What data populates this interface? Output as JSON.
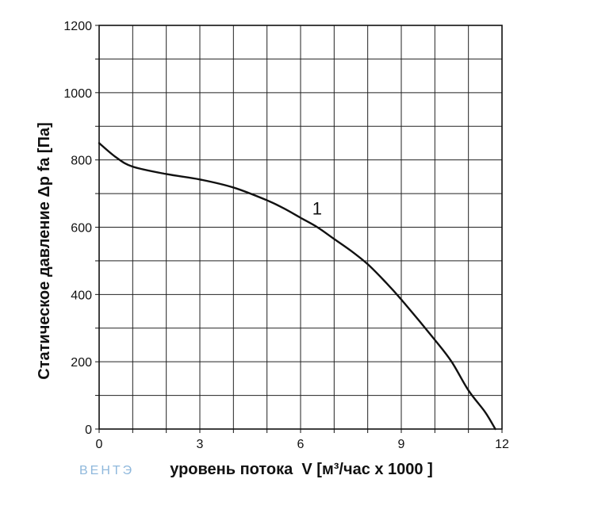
{
  "watermark": "ВЕНТЭ",
  "chart_data": {
    "type": "line",
    "xlabel": "уровень потока  V [м³/час x 1000 ]",
    "ylabel": "Статическое давление  Δp fa [Па]",
    "xlim": [
      0,
      12
    ],
    "ylim": [
      0,
      1200
    ],
    "x_ticks": [
      "0",
      "3",
      "6",
      "9",
      "12"
    ],
    "y_ticks": [
      "0",
      "200",
      "400",
      "600",
      "800",
      "1000",
      "1200"
    ],
    "grid": true,
    "series": [
      {
        "name": "1",
        "x": [
          0,
          0.5,
          1,
          2,
          3,
          4,
          5,
          5.5,
          6,
          6.5,
          7,
          7.5,
          8,
          8.5,
          9,
          10,
          10.5,
          11,
          11.5,
          11.8
        ],
        "y": [
          850,
          808,
          780,
          758,
          742,
          718,
          680,
          656,
          628,
          600,
          565,
          530,
          490,
          440,
          385,
          265,
          200,
          115,
          50,
          0
        ]
      }
    ],
    "annotations": [
      {
        "text": "1",
        "x": 6.3,
        "y": 650
      }
    ]
  }
}
